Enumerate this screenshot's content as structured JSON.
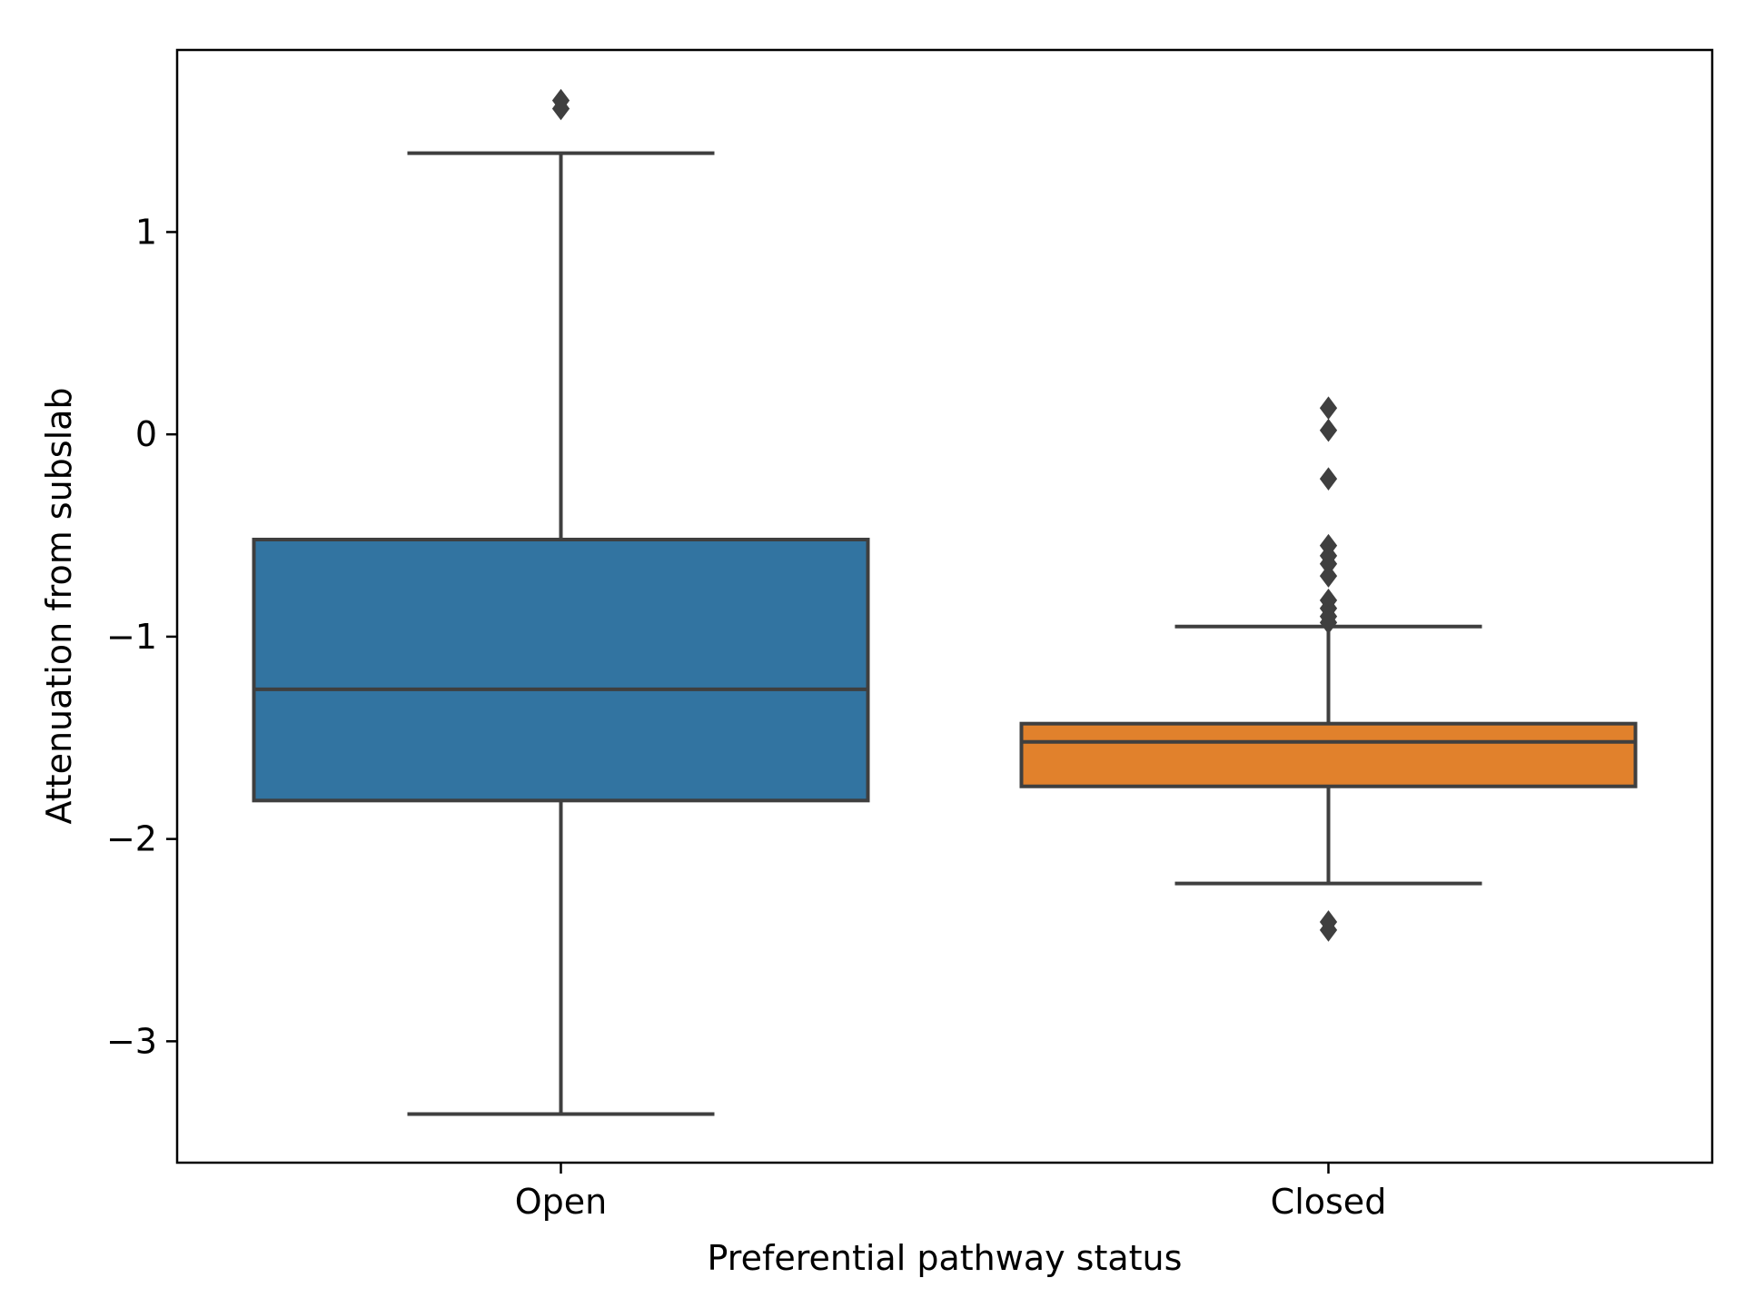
{
  "chart_data": {
    "type": "box",
    "title": "",
    "xlabel": "Preferential pathway status",
    "ylabel": "Attenuation from subslab",
    "ylim": [
      -3.6,
      1.9
    ],
    "yticks": [
      1,
      0,
      -1,
      -2,
      -3
    ],
    "ytick_labels": [
      "1",
      "0",
      "−1",
      "−2",
      "−3"
    ],
    "grid": false,
    "legend": "none",
    "categories": [
      "Open",
      "Closed"
    ],
    "boxes": [
      {
        "category": "Open",
        "color": "#3274a1",
        "whisker_low": -3.36,
        "q1": -1.81,
        "median": -1.26,
        "q3": -0.52,
        "whisker_high": 1.39,
        "outliers": [
          1.65,
          1.61
        ]
      },
      {
        "category": "Closed",
        "color": "#e1812c",
        "whisker_low": -2.22,
        "q1": -1.74,
        "median": -1.52,
        "q3": -1.43,
        "whisker_high": -0.95,
        "outliers": [
          0.13,
          0.02,
          -0.22,
          -0.55,
          -0.6,
          -0.64,
          -0.7,
          -0.82,
          -0.86,
          -0.9,
          -0.93,
          -2.41,
          -2.45
        ]
      }
    ]
  }
}
